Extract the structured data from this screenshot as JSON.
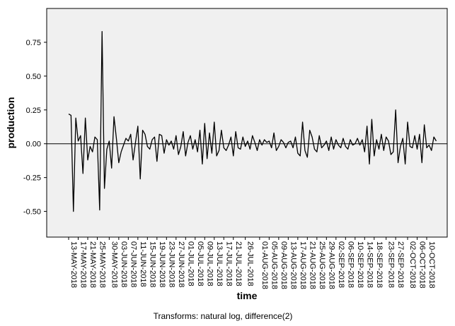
{
  "chart_data": {
    "type": "line",
    "xlabel": "time",
    "ylabel": "production",
    "footnote": "Transforms: natural log, difference(2)",
    "ylim": [
      -0.69,
      1.0
    ],
    "yticks": [
      -0.5,
      -0.25,
      0.0,
      0.25,
      0.5,
      0.75
    ],
    "ytick_labels": [
      "-0.50",
      "-0.25",
      "0.00",
      "0.25",
      "0.50",
      "0.75"
    ],
    "reference_line_y": 0.0,
    "x_start": "2018-05-13",
    "x_tick_labels": [
      "13-MAY-2018",
      "17-MAY-2018",
      "21-MAY-2018",
      "25-MAY-2018",
      "30-MAY-2018",
      "03-JUN-2018",
      "07-JUN-2018",
      "11-JUN-2018",
      "15-JUN-2018",
      "19-JUN-2018",
      "23-JUN-2018",
      "27-JUN-2018",
      "01-JUL-2018",
      "05-JUL-2018",
      "09-JUL-2018",
      "13-JUL-2018",
      "17-JUL-2018",
      "21-JUL-2018",
      "26-JUL-2018",
      "01-AUG-2018",
      "05-AUG-2018",
      "09-AUG-2018",
      "13-AUG-2018",
      "17-AUG-2018",
      "21-AUG-2018",
      "25-AUG-2018",
      "29-AUG-2018",
      "02-SEP-2018",
      "06-SEP-2018",
      "10-SEP-2018",
      "14-SEP-2018",
      "18-SEP-2018",
      "23-SEP-2018",
      "27-SEP-2018",
      "02-OCT-2018",
      "06-OCT-2018",
      "10-OCT-2018"
    ],
    "series": [
      {
        "name": "",
        "color": "#000000",
        "values": [
          0.22,
          0.21,
          -0.5,
          0.19,
          0.02,
          0.06,
          -0.22,
          0.19,
          -0.12,
          -0.02,
          -0.06,
          0.05,
          0.03,
          -0.49,
          0.83,
          -0.33,
          -0.04,
          0.02,
          -0.18,
          0.2,
          0.04,
          -0.14,
          -0.06,
          -0.01,
          0.04,
          0.02,
          0.07,
          -0.12,
          0.01,
          0.13,
          -0.26,
          0.1,
          0.07,
          -0.02,
          -0.04,
          0.03,
          0.05,
          -0.13,
          0.07,
          0.06,
          -0.07,
          0.03,
          -0.01,
          0.02,
          -0.04,
          0.06,
          -0.08,
          -0.02,
          0.09,
          -0.09,
          0.01,
          0.06,
          -0.04,
          0.03,
          -0.06,
          0.1,
          -0.15,
          0.15,
          -0.11,
          0.08,
          -0.07,
          0.16,
          -0.09,
          -0.05,
          0.1,
          -0.03,
          -0.05,
          -0.01,
          0.05,
          -0.09,
          0.09,
          -0.03,
          -0.04,
          0.05,
          -0.02,
          0.02,
          -0.04,
          0.06,
          0.01,
          -0.05,
          0.03,
          -0.01,
          0.03,
          0.01,
          0.02,
          -0.03,
          0.08,
          -0.05,
          -0.02,
          0.03,
          0.01,
          -0.03,
          0.01,
          0.02,
          -0.03,
          0.05,
          -0.07,
          -0.09,
          0.16,
          -0.05,
          -0.1,
          0.1,
          0.05,
          -0.04,
          -0.06,
          0.06,
          -0.03,
          -0.01,
          0.02,
          -0.05,
          0.05,
          -0.04,
          0.03,
          -0.01,
          -0.03,
          0.04,
          -0.02,
          -0.04,
          0.03,
          -0.01,
          0.0,
          0.04,
          -0.01,
          0.03,
          -0.06,
          0.13,
          -0.15,
          0.18,
          -0.09,
          0.03,
          -0.04,
          0.07,
          -0.05,
          0.05,
          0.02,
          -0.08,
          -0.06,
          0.25,
          -0.14,
          -0.02,
          0.04,
          -0.15,
          0.16,
          -0.02,
          -0.03,
          0.06,
          -0.04,
          0.07,
          -0.14,
          0.14,
          -0.03,
          -0.01,
          -0.05,
          0.05,
          0.02
        ]
      }
    ]
  }
}
